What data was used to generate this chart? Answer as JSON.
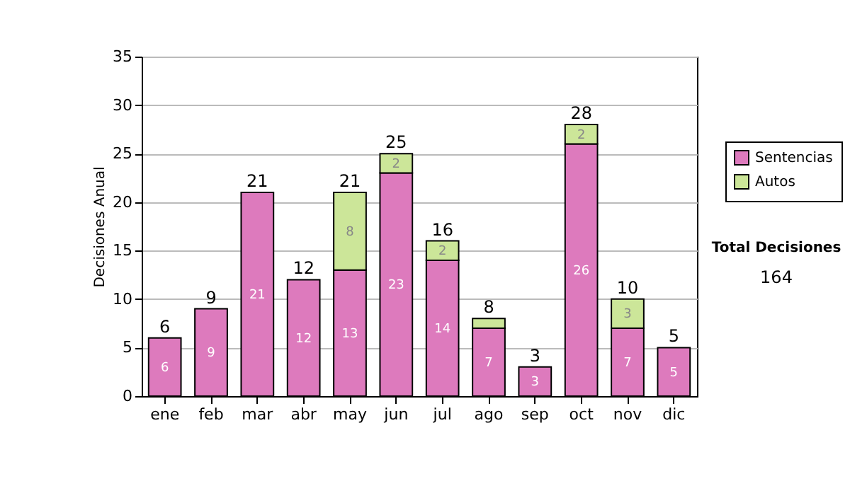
{
  "chart_data": {
    "type": "bar",
    "stacked": true,
    "ylabel": "Decisiones Anual",
    "categories": [
      "ene",
      "feb",
      "mar",
      "abr",
      "may",
      "jun",
      "jul",
      "ago",
      "sep",
      "oct",
      "nov",
      "dic"
    ],
    "series": [
      {
        "name": "Sentencias",
        "color": "#dd7abd",
        "values": [
          6,
          9,
          21,
          12,
          13,
          23,
          14,
          7,
          3,
          26,
          7,
          5
        ],
        "value_labels": [
          "6",
          "9",
          "21",
          "12",
          "13",
          "23",
          "14",
          "7",
          "3",
          "26",
          "7",
          "5"
        ]
      },
      {
        "name": "Autos",
        "color": "#cce699",
        "values": [
          null,
          null,
          null,
          null,
          8,
          2,
          2,
          1,
          null,
          2,
          3,
          null
        ],
        "value_labels": [
          null,
          null,
          null,
          null,
          "8",
          "2",
          "2",
          null,
          null,
          "2",
          "3",
          null
        ]
      }
    ],
    "totals": [
      "6",
      "9",
      "21",
      "12",
      "21",
      "25",
      "16",
      "8",
      "3",
      "28",
      "10",
      "5"
    ],
    "ylim": [
      0,
      35
    ],
    "yticks": [
      0,
      5,
      10,
      15,
      20,
      25,
      30,
      35
    ],
    "grid": "y",
    "legend": "right",
    "annotations": [
      "Total Decisiones",
      "164"
    ]
  }
}
